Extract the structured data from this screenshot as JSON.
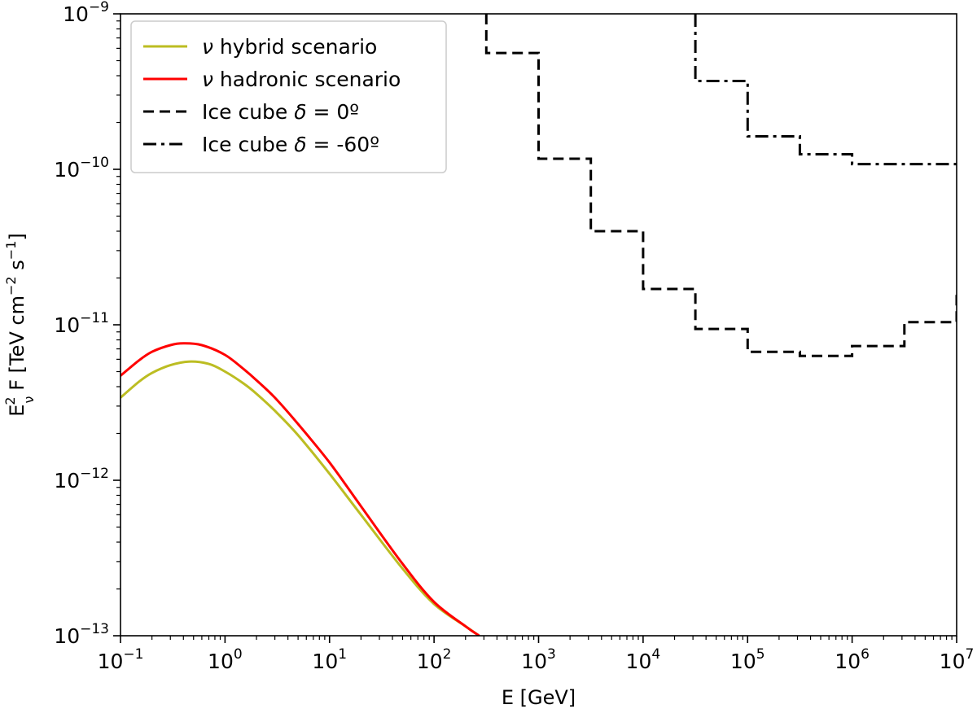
{
  "chart_data": {
    "type": "line",
    "title": "",
    "xlabel": "E [GeV]",
    "ylabel": "E_ν^2 F [TeV cm^-2 s^-1]",
    "xscale": "log",
    "yscale": "log",
    "xlim": [
      0.1,
      10000000
    ],
    "ylim": [
      1e-13,
      1e-09
    ],
    "grid": false,
    "legend_position": "top-left",
    "x_ticks": [
      {
        "value": 0.1,
        "base": "10",
        "exp": "−1"
      },
      {
        "value": 1,
        "base": "10",
        "exp": "0"
      },
      {
        "value": 10,
        "base": "10",
        "exp": "1"
      },
      {
        "value": 100,
        "base": "10",
        "exp": "2"
      },
      {
        "value": 1000,
        "base": "10",
        "exp": "3"
      },
      {
        "value": 10000,
        "base": "10",
        "exp": "4"
      },
      {
        "value": 100000,
        "base": "10",
        "exp": "5"
      },
      {
        "value": 1000000,
        "base": "10",
        "exp": "6"
      },
      {
        "value": 10000000,
        "base": "10",
        "exp": "7"
      }
    ],
    "y_ticks": [
      {
        "value": 1e-13,
        "base": "10",
        "exp": "−13"
      },
      {
        "value": 1e-12,
        "base": "10",
        "exp": "−12"
      },
      {
        "value": 1e-11,
        "base": "10",
        "exp": "−11"
      },
      {
        "value": 1e-10,
        "base": "10",
        "exp": "−10"
      },
      {
        "value": 1e-09,
        "base": "10",
        "exp": "−9"
      }
    ],
    "series": [
      {
        "name": "ν hybrid scenario",
        "legend_label": "hybrid scenario",
        "color": "#bcbd22",
        "dash": "solid",
        "kind": "curve",
        "x": [
          0.1,
          0.15,
          0.2,
          0.3,
          0.45,
          0.7,
          1,
          1.5,
          2,
          3,
          5,
          10,
          20,
          50,
          100,
          200,
          270
        ],
        "y": [
          3.4e-12,
          4.3e-12,
          4.9e-12,
          5.5e-12,
          5.8e-12,
          5.6e-12,
          5e-12,
          4.2e-12,
          3.6e-12,
          2.8e-12,
          1.95e-12,
          1.1e-12,
          6e-13,
          2.7e-13,
          1.6e-13,
          1.15e-13,
          1e-13
        ]
      },
      {
        "name": "ν hadronic scenario",
        "legend_label": "hadronic scenario",
        "color": "#ff0000",
        "dash": "solid",
        "kind": "curve",
        "x": [
          0.1,
          0.15,
          0.2,
          0.3,
          0.4,
          0.6,
          1,
          1.5,
          2,
          3,
          5,
          10,
          20,
          50,
          100,
          200,
          270
        ],
        "y": [
          4.7e-12,
          5.9e-12,
          6.7e-12,
          7.4e-12,
          7.6e-12,
          7.4e-12,
          6.4e-12,
          5.2e-12,
          4.4e-12,
          3.4e-12,
          2.3e-12,
          1.3e-12,
          6.8e-13,
          2.9e-13,
          1.65e-13,
          1.15e-13,
          1e-13
        ]
      },
      {
        "name": "Ice cube δ = 0º",
        "legend_label": "Ice cube ",
        "legend_suffix": " = 0º",
        "color": "#000000",
        "dash": "dashed",
        "kind": "step",
        "edges": [
          316,
          1000,
          3162,
          10000,
          31623,
          100000,
          316228,
          1000000,
          3162278,
          10000000
        ],
        "values": [
          5.6e-10,
          1.17e-10,
          4e-11,
          1.7e-11,
          9.4e-12,
          6.7e-12,
          6.3e-12,
          7.3e-12,
          1.04e-11
        ],
        "end_value": 1.6e-11
      },
      {
        "name": "Ice cube δ = -60º",
        "legend_label": "Ice cube ",
        "legend_suffix": " = -60º",
        "color": "#000000",
        "dash": "dashdot",
        "kind": "step",
        "edges": [
          31623,
          100000,
          316228,
          1000000,
          10000000
        ],
        "values": [
          3.7e-10,
          1.63e-10,
          1.25e-10,
          1.08e-10
        ]
      }
    ]
  }
}
